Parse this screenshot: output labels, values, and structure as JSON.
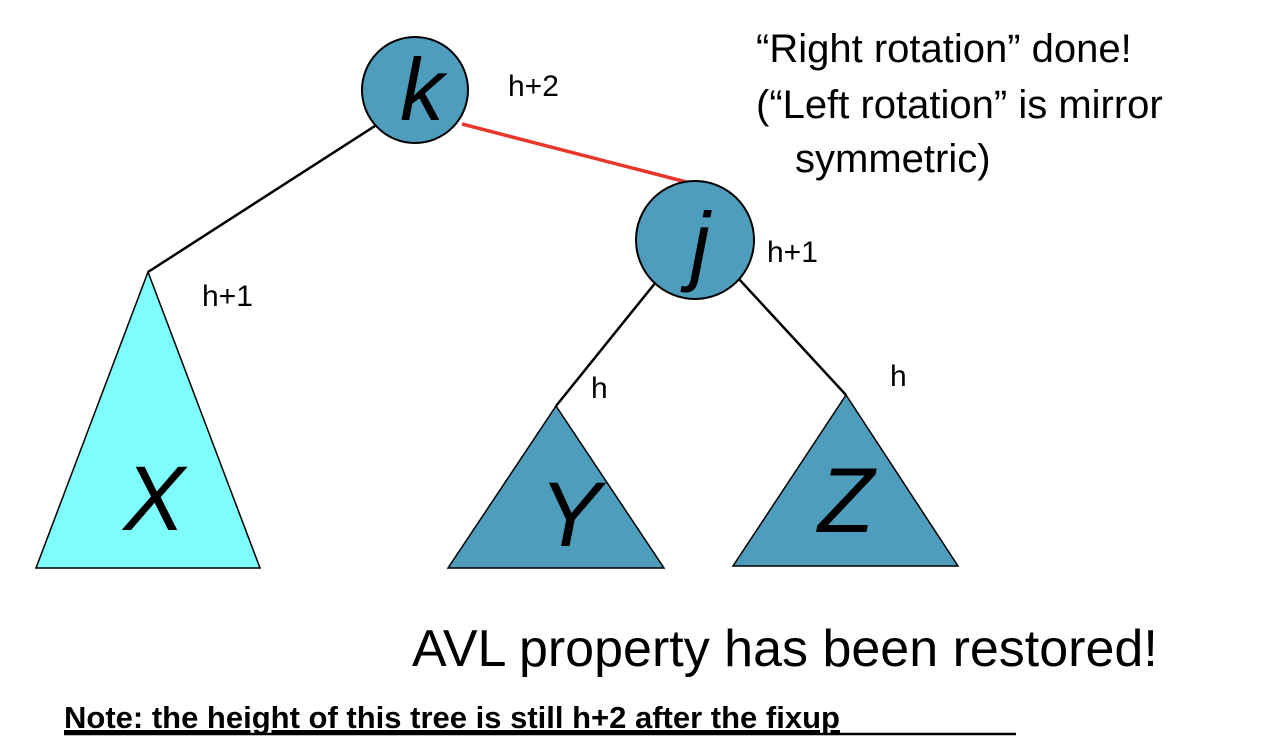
{
  "colors": {
    "node_fill": "#4f9dbd",
    "x_subtree_fill": "#7ffdfd",
    "yz_subtree_fill": "#4f9dbd",
    "highlight_edge": "#e8372a",
    "edge": "#000000"
  },
  "nodes": {
    "k": {
      "label": "k",
      "height": "h+2"
    },
    "j": {
      "label": "j",
      "height": "h+1"
    }
  },
  "subtrees": {
    "x": {
      "label": "X",
      "height": "h+1"
    },
    "y": {
      "label": "Y",
      "height": "h"
    },
    "z": {
      "label": "Z",
      "height": "h"
    }
  },
  "callout": {
    "line1": "“Right rotation” done!",
    "line2": "(“Left rotation” is mirror",
    "line3": "symmetric)"
  },
  "message": "AVL property has been restored!",
  "note": "Note: the height of this tree is still h+2 after the fixup"
}
